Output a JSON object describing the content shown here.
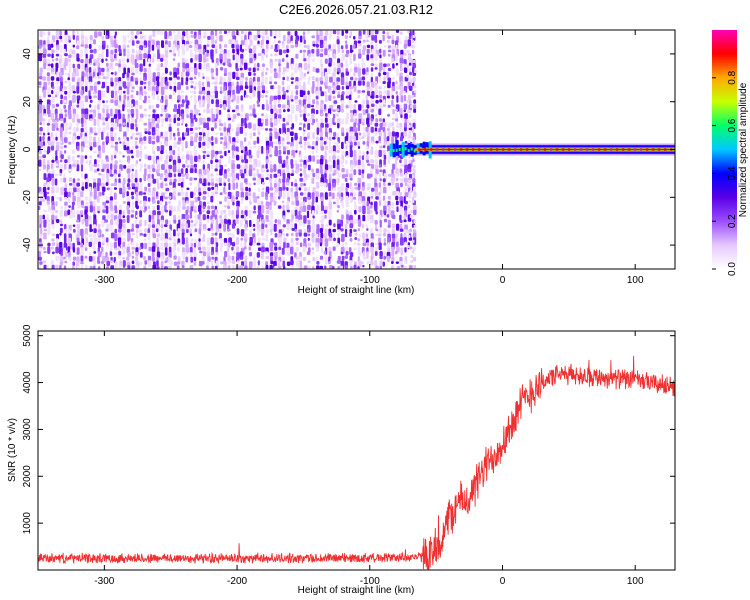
{
  "title": "C2E6.2026.057.21.03.R12",
  "chart_data": [
    {
      "type": "heatmap",
      "xlabel": "Height of straight line (km)",
      "ylabel": "Frequency (Hz)",
      "xlim": [
        -350,
        130
      ],
      "ylim": [
        -50,
        50
      ],
      "x_ticks": [
        -300,
        -200,
        -100,
        0,
        100
      ],
      "y_ticks": [
        -40,
        -20,
        0,
        20,
        40
      ],
      "noise_region_x": [
        -350,
        -68
      ],
      "signal_band_x": [
        -85,
        130
      ],
      "signal_center_hz": 0,
      "colorbar": {
        "label": "Normalized spectral amplitude",
        "range": [
          0.0,
          1.0
        ],
        "ticks": [
          "0.0",
          "0.2",
          "0.4",
          "0.6",
          "0.8"
        ],
        "colormap": [
          "#ffffff",
          "#e6c8ff",
          "#9b4dff",
          "#5a00e6",
          "#0000ff",
          "#00c8ff",
          "#00ff6a",
          "#c8ff00",
          "#ffaa00",
          "#ff0000",
          "#ff00b4"
        ]
      }
    },
    {
      "type": "line",
      "xlabel": "Height of straight line (km)",
      "ylabel": "SNR (10 * v/v)",
      "xlim": [
        -350,
        130
      ],
      "ylim": [
        0,
        5100
      ],
      "x_ticks": [
        -300,
        -200,
        -100,
        0,
        100
      ],
      "y_ticks": [
        1000,
        2000,
        3000,
        4000,
        5000
      ],
      "color": "#f03030",
      "series": [
        {
          "name": "SNR",
          "x": [
            -350,
            -300,
            -250,
            -200,
            -150,
            -100,
            -60,
            -50,
            -45,
            -40,
            -35,
            -30,
            -25,
            -20,
            -15,
            -10,
            -5,
            0,
            5,
            10,
            15,
            20,
            25,
            30,
            35,
            40,
            50,
            60,
            70,
            80,
            90,
            100,
            110,
            120,
            130
          ],
          "y": [
            250,
            250,
            250,
            250,
            250,
            260,
            280,
            350,
            700,
            1150,
            1350,
            1500,
            1500,
            1800,
            2100,
            2300,
            2500,
            2750,
            3000,
            3300,
            3550,
            3750,
            3900,
            4000,
            4100,
            4150,
            4180,
            4150,
            4120,
            4100,
            4080,
            4050,
            4000,
            3950,
            3900
          ]
        }
      ]
    }
  ]
}
